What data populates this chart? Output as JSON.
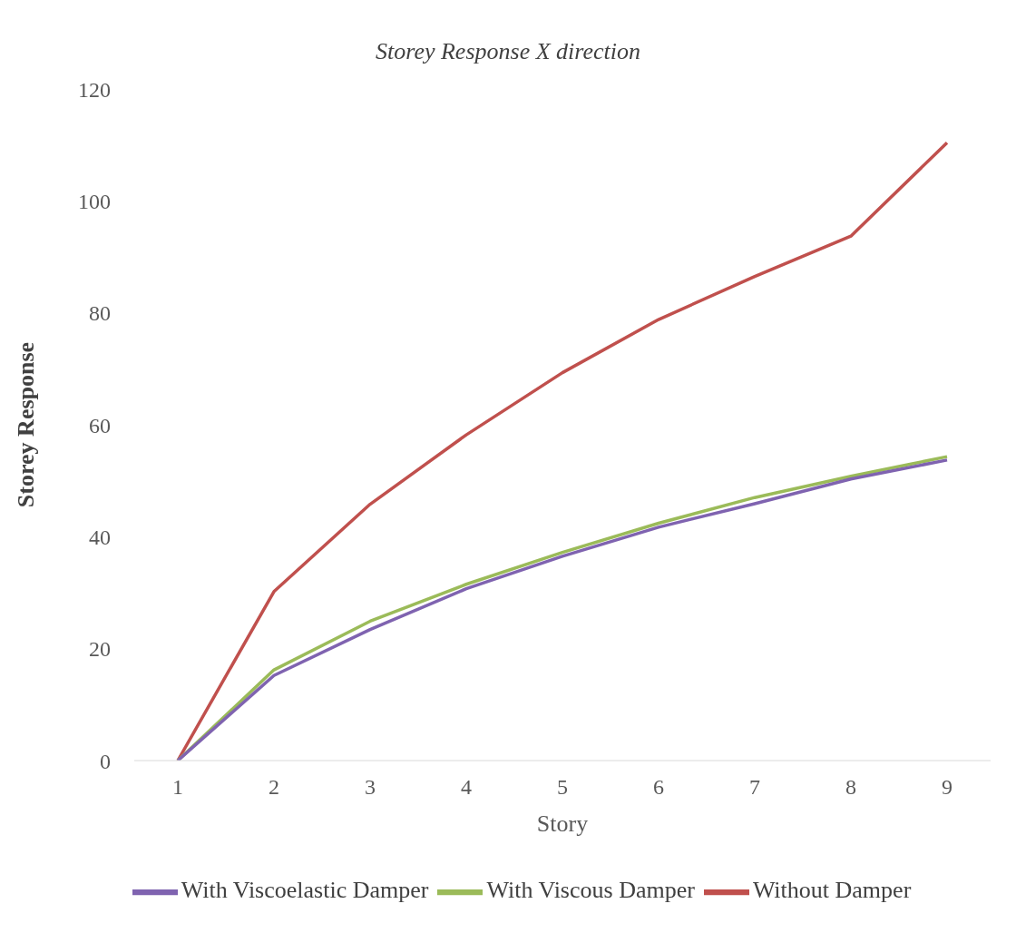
{
  "chart_data": {
    "type": "line",
    "title": "Storey Response X direction",
    "xlabel": "Story",
    "ylabel": "Storey Response",
    "categories": [
      "1",
      "2",
      "3",
      "4",
      "5",
      "6",
      "7",
      "8",
      "9"
    ],
    "series": [
      {
        "name": "Without Damper",
        "color": "#c0504d",
        "values": [
          0,
          30.2,
          45.8,
          58.2,
          69.3,
          78.8,
          86.5,
          93.7,
          110.4
        ]
      },
      {
        "name": "With Viscous Damper",
        "color": "#9bbb59",
        "values": [
          0,
          16.2,
          24.9,
          31.5,
          37.2,
          42.4,
          47.0,
          50.8,
          54.3
        ]
      },
      {
        "name": "With Viscoelastic Damper",
        "color": "#7f63b0",
        "values": [
          0,
          15.2,
          23.4,
          30.7,
          36.5,
          41.7,
          45.9,
          50.3,
          53.7
        ]
      }
    ],
    "ylim": [
      0,
      120
    ],
    "yticks": [
      0,
      20,
      40,
      60,
      80,
      100,
      120
    ],
    "grid": false,
    "legend": "bottom",
    "marker": "none",
    "line_style": "solid"
  }
}
